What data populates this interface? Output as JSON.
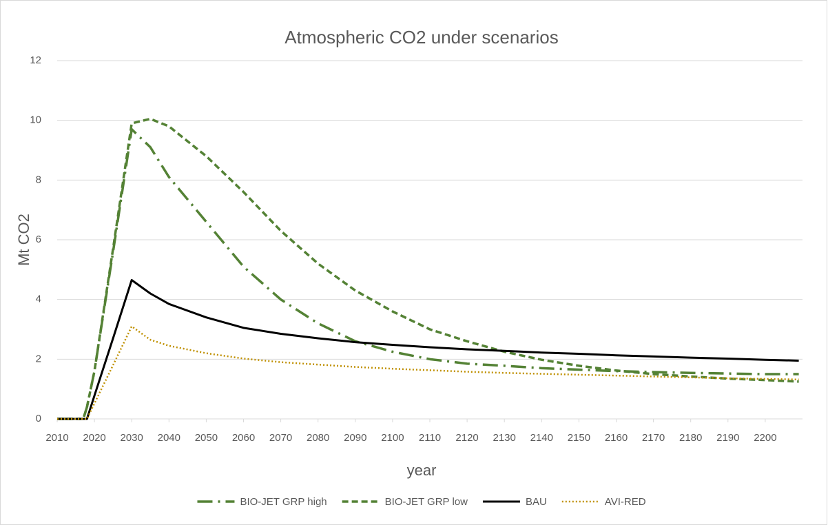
{
  "chart_data": {
    "type": "line",
    "title": "Atmospheric CO2 under scenarios",
    "x_label": "year",
    "y_label": "Mt CO2",
    "x": [
      2010,
      2017,
      2018,
      2020,
      2025,
      2030,
      2035,
      2040,
      2050,
      2060,
      2070,
      2080,
      2090,
      2100,
      2110,
      2120,
      2130,
      2140,
      2150,
      2160,
      2170,
      2180,
      2190,
      2200,
      2209
    ],
    "series": [
      {
        "name": "BIO-JET GRP high",
        "color": "#548235",
        "style": "dashdot",
        "values": [
          0,
          0,
          0.4,
          1.6,
          5.6,
          9.7,
          9.1,
          8.1,
          6.6,
          5.1,
          4.0,
          3.2,
          2.6,
          2.25,
          2.0,
          1.85,
          1.78,
          1.7,
          1.65,
          1.6,
          1.57,
          1.54,
          1.52,
          1.5,
          1.5
        ]
      },
      {
        "name": "BIO-JET GRP low",
        "color": "#548235",
        "style": "dash",
        "values": [
          0,
          0,
          0.4,
          1.6,
          5.7,
          9.9,
          10.05,
          9.8,
          8.8,
          7.6,
          6.3,
          5.2,
          4.3,
          3.6,
          3.0,
          2.6,
          2.25,
          1.98,
          1.78,
          1.62,
          1.5,
          1.42,
          1.35,
          1.3,
          1.25
        ]
      },
      {
        "name": "BAU",
        "color": "#000000",
        "style": "solid",
        "values": [
          0,
          0,
          0,
          0.78,
          2.7,
          4.65,
          4.2,
          3.85,
          3.4,
          3.05,
          2.85,
          2.7,
          2.57,
          2.48,
          2.4,
          2.33,
          2.28,
          2.22,
          2.18,
          2.13,
          2.09,
          2.05,
          2.02,
          1.98,
          1.95
        ]
      },
      {
        "name": "AVI-RED",
        "color": "#bf9000",
        "style": "dot",
        "values": [
          0,
          0,
          0,
          0.52,
          1.8,
          3.1,
          2.65,
          2.45,
          2.2,
          2.02,
          1.9,
          1.82,
          1.74,
          1.68,
          1.63,
          1.58,
          1.54,
          1.51,
          1.48,
          1.45,
          1.42,
          1.39,
          1.36,
          1.34,
          1.32
        ]
      }
    ],
    "xlim": [
      2010,
      2210
    ],
    "xticks": [
      2010,
      2020,
      2030,
      2040,
      2050,
      2060,
      2070,
      2080,
      2090,
      2100,
      2110,
      2120,
      2130,
      2140,
      2150,
      2160,
      2170,
      2180,
      2190,
      2200
    ],
    "ylim": [
      0,
      12
    ],
    "yticks": [
      0,
      2,
      4,
      6,
      8,
      10,
      12
    ],
    "grid": true,
    "legend": "bottom"
  }
}
